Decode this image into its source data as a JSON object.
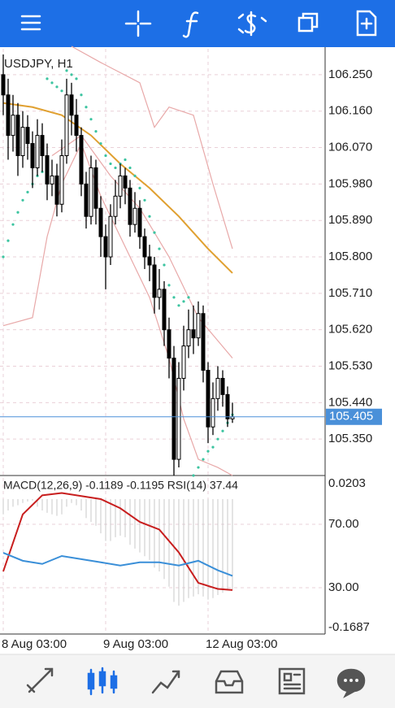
{
  "chart_data": [
    {
      "type": "candlestick",
      "title": "USDJPY, H1",
      "categories": [
        "8 Aug 03:00",
        null,
        null,
        null,
        null,
        null,
        null,
        null,
        null,
        null,
        null,
        null,
        null,
        null,
        null,
        null,
        null,
        null,
        null,
        null,
        null,
        "9 Aug 03:00",
        null,
        null,
        null,
        null,
        null,
        null,
        null,
        null,
        null,
        null,
        null,
        null,
        null,
        null,
        null,
        null,
        null,
        null,
        null,
        null,
        "12 Aug 03:00",
        null,
        null,
        null,
        null,
        null
      ],
      "ohlc": [
        [
          106.25,
          106.3,
          106.15,
          106.2
        ],
        [
          106.2,
          106.24,
          106.04,
          106.1
        ],
        [
          106.1,
          106.2,
          106.06,
          106.15
        ],
        [
          106.15,
          106.18,
          106.0,
          106.05
        ],
        [
          106.05,
          106.16,
          106.02,
          106.12
        ],
        [
          106.12,
          106.15,
          106.04,
          106.08
        ],
        [
          106.08,
          106.11,
          105.97,
          106.02
        ],
        [
          106.02,
          106.14,
          106.0,
          106.1
        ],
        [
          106.1,
          106.13,
          106.01,
          106.05
        ],
        [
          106.05,
          106.08,
          105.94,
          105.98
        ],
        [
          105.98,
          106.04,
          105.95,
          106.0
        ],
        [
          106.0,
          106.03,
          105.9,
          105.93
        ],
        [
          105.93,
          106.09,
          105.91,
          106.05
        ],
        [
          106.05,
          106.24,
          106.03,
          106.2
        ],
        [
          106.2,
          106.23,
          106.1,
          106.15
        ],
        [
          106.15,
          106.19,
          106.06,
          106.1
        ],
        [
          106.1,
          106.12,
          105.95,
          105.98
        ],
        [
          105.98,
          106.01,
          105.87,
          105.9
        ],
        [
          105.9,
          106.05,
          105.88,
          106.02
        ],
        [
          106.02,
          106.04,
          105.88,
          105.92
        ],
        [
          105.92,
          105.95,
          105.8,
          105.85
        ],
        [
          105.85,
          105.88,
          105.72,
          105.8
        ],
        [
          105.8,
          105.93,
          105.78,
          105.9
        ],
        [
          105.9,
          105.99,
          105.88,
          105.95
        ],
        [
          105.95,
          106.03,
          105.92,
          106.0
        ],
        [
          106.0,
          106.02,
          105.93,
          105.97
        ],
        [
          105.97,
          105.99,
          105.85,
          105.88
        ],
        [
          105.88,
          105.96,
          105.86,
          105.92
        ],
        [
          105.92,
          105.94,
          105.82,
          105.85
        ],
        [
          105.85,
          105.87,
          105.77,
          105.8
        ],
        [
          105.8,
          105.83,
          105.74,
          105.78
        ],
        [
          105.78,
          105.8,
          105.66,
          105.7
        ],
        [
          105.7,
          105.77,
          105.67,
          105.72
        ],
        [
          105.72,
          105.74,
          105.58,
          105.62
        ],
        [
          105.62,
          105.65,
          105.5,
          105.55
        ],
        [
          105.55,
          105.58,
          105.26,
          105.3
        ],
        [
          105.3,
          105.54,
          105.28,
          105.5
        ],
        [
          105.5,
          105.63,
          105.47,
          105.58
        ],
        [
          105.58,
          105.67,
          105.55,
          105.62
        ],
        [
          105.62,
          105.68,
          105.56,
          105.6
        ],
        [
          105.6,
          105.69,
          105.58,
          105.66
        ],
        [
          105.66,
          105.68,
          105.49,
          105.52
        ],
        [
          105.52,
          105.54,
          105.34,
          105.38
        ],
        [
          105.38,
          105.49,
          105.36,
          105.45
        ],
        [
          105.45,
          105.53,
          105.42,
          105.5
        ],
        [
          105.5,
          105.52,
          105.43,
          105.46
        ],
        [
          105.46,
          105.48,
          105.38,
          105.4
        ],
        [
          105.4,
          105.44,
          105.39,
          105.405
        ]
      ],
      "ylim": [
        105.26,
        106.314
      ],
      "yticks": [
        {
          "value": 106.25,
          "label": "106.250"
        },
        {
          "value": 106.16,
          "label": "106.160"
        },
        {
          "value": 106.07,
          "label": "106.070"
        },
        {
          "value": 105.98,
          "label": "105.980"
        },
        {
          "value": 105.89,
          "label": "105.890"
        },
        {
          "value": 105.8,
          "label": "105.800"
        },
        {
          "value": 105.71,
          "label": "105.710"
        },
        {
          "value": 105.62,
          "label": "105.620"
        },
        {
          "value": 105.53,
          "label": "105.530"
        },
        {
          "value": 105.44,
          "label": "105.440"
        },
        {
          "value": 105.35,
          "label": "105.350"
        }
      ],
      "grid": true,
      "lines": [
        {
          "color": "#e0a030",
          "x": [
            0,
            6,
            12,
            18,
            24,
            30,
            36,
            42,
            47
          ],
          "values": [
            106.18,
            106.17,
            106.15,
            106.1,
            106.03,
            105.97,
            105.9,
            105.82,
            105.76
          ]
        },
        {
          "color": "#e8a8a8",
          "x": [
            14,
            20,
            28,
            31,
            34,
            39,
            43,
            47
          ],
          "values": [
            106.32,
            106.28,
            106.23,
            106.12,
            106.17,
            106.15,
            105.98,
            105.82
          ]
        },
        {
          "color": "#e8a8a8",
          "x": [
            10,
            16,
            22,
            28,
            34,
            40,
            47
          ],
          "values": [
            106.05,
            106.1,
            106.0,
            105.92,
            105.8,
            105.65,
            105.55
          ]
        },
        {
          "color": "#e8a8a8",
          "x": [
            0,
            6,
            9,
            12,
            16,
            20,
            26,
            30,
            34,
            37,
            40,
            44,
            47
          ],
          "values": [
            105.63,
            105.65,
            105.85,
            105.98,
            106.08,
            105.95,
            105.8,
            105.7,
            105.55,
            105.4,
            105.3,
            105.28,
            105.26
          ]
        }
      ],
      "sar": {
        "color": "#3cc4a0",
        "values": [
          105.8,
          105.84,
          105.88,
          105.91,
          105.94,
          105.96,
          105.98,
          106.0,
          106.01,
          106.24,
          106.23,
          106.22,
          106.21,
          106.26,
          106.25,
          106.24,
          106.2,
          106.17,
          106.14,
          106.11,
          106.08,
          106.05,
          106.03,
          106.02,
          106.03,
          106.04,
          106.02,
          106.0,
          105.97,
          105.94,
          105.9,
          105.86,
          105.82,
          105.78,
          105.73,
          105.7,
          105.68,
          105.69,
          105.7,
          105.26,
          105.28,
          105.3,
          105.32,
          105.33,
          105.35,
          105.37,
          105.39,
          105.41
        ]
      },
      "current_price": {
        "value": 105.405,
        "label": "105.405",
        "color": "#4a90d9"
      }
    },
    {
      "type": "macd",
      "title": "MACD(12,26,9) -0.1189 -0.1195 RSI(14) 37.44",
      "histogram": {
        "color": "#c8c8c8",
        "values": [
          -0.02,
          -0.015,
          -0.01,
          -0.008,
          -0.005,
          -0.003,
          -0.002,
          -0.01,
          -0.015,
          -0.018,
          -0.02,
          -0.022,
          -0.02,
          -0.01,
          -0.005,
          -0.008,
          -0.015,
          -0.025,
          -0.03,
          -0.035,
          -0.045,
          -0.055,
          -0.055,
          -0.05,
          -0.048,
          -0.05,
          -0.06,
          -0.065,
          -0.07,
          -0.075,
          -0.08,
          -0.09,
          -0.095,
          -0.105,
          -0.115,
          -0.135,
          -0.14,
          -0.135,
          -0.13,
          -0.128,
          -0.125,
          -0.128,
          -0.132,
          -0.13,
          -0.126,
          -0.123,
          -0.12,
          -0.1189
        ]
      },
      "x": [
        0,
        4,
        8,
        12,
        16,
        20,
        24,
        28,
        32,
        36,
        40,
        44,
        47
      ],
      "series": [
        {
          "color": "#c81e1e",
          "values": [
            -0.095,
            -0.02,
            0.005,
            0.008,
            0.004,
            0.0,
            -0.012,
            -0.03,
            -0.04,
            -0.07,
            -0.11,
            -0.118,
            -0.1195
          ]
        },
        {
          "color": "#3a8fd8",
          "axis": "y2",
          "values": [
            52,
            47,
            45,
            50,
            48,
            46,
            44,
            46,
            46,
            44,
            47,
            41,
            37.44
          ]
        }
      ],
      "ylim": [
        -0.1687,
        0.0203
      ],
      "yticks": [
        0.0203,
        -0.1687
      ],
      "y2lim": [
        4.87,
        95.64
      ],
      "y2ticks": [
        {
          "value": 70,
          "label": "70.00"
        },
        {
          "value": 30,
          "label": "30.00"
        }
      ]
    }
  ]
}
